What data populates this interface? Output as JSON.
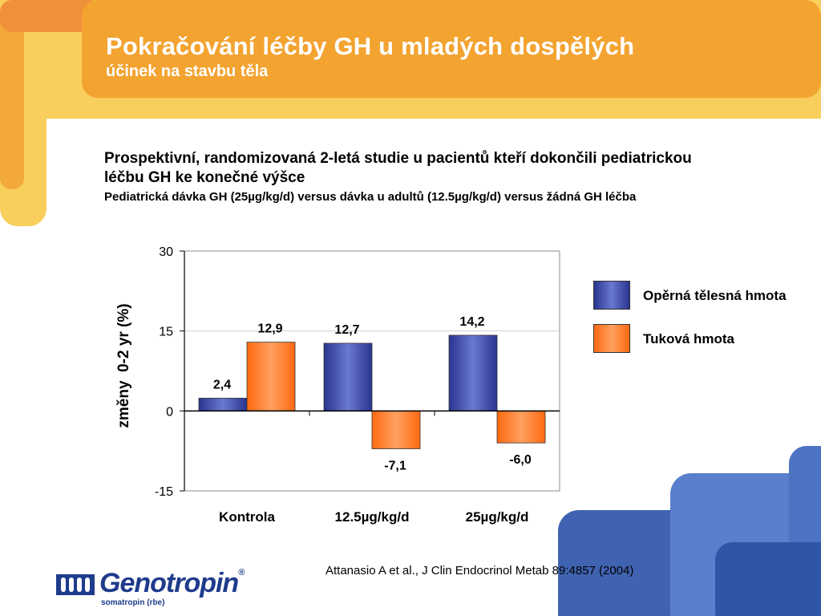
{
  "slide": {
    "title": "Pokračování léčby GH  u mladých dospělých",
    "subtitle": "účinek na stavbu těla",
    "study_title": "Prospektivní, randomizovaná 2-letá studie u pacientů kteří dokončili pediatrickou léčbu GH ke konečné výšce",
    "study_detail": "Pediatrická dávka GH (25µg/kg/d) versus dávka u adultů (12.5µg/kg/d) versus žádná GH léčba",
    "citation": "Attanasio A et al., J Clin Endocrinol Metab 89:4857 (2004)"
  },
  "logo": {
    "wordmark": "Genotropin",
    "registered": "®",
    "tagline": "somatropin (rbe)"
  },
  "colors": {
    "header_orange": "#f3a330",
    "header_yellow": "#f7c24a",
    "accent_blue": "#3f63b0",
    "series_blue": "#3c4aa6",
    "series_orange": "#ff7a22"
  },
  "chart_data": {
    "type": "bar",
    "categories": [
      "Kontrola",
      "12.5µg/kg/d",
      "25µg/kg/d"
    ],
    "series": [
      {
        "name": "Opěrná tělesná hmota",
        "values": [
          2.4,
          12.7,
          14.2
        ],
        "labels": [
          "2,4",
          "12,7",
          "14,2"
        ],
        "color": "#3c4aa6"
      },
      {
        "name": "Tuková hmota",
        "values": [
          12.9,
          -7.1,
          -6.0
        ],
        "labels": [
          "12,9",
          "-7,1",
          "-6,0"
        ],
        "color": "#ff7a22"
      }
    ],
    "ylabel": "změny  0-2 yr (%)",
    "xlabel": "",
    "ylim": [
      -15,
      30
    ],
    "yticks": [
      "30",
      "15",
      "0",
      "-15"
    ],
    "ytick_values": [
      30,
      15,
      0,
      -15
    ],
    "grid": true,
    "legend_position": "right"
  }
}
